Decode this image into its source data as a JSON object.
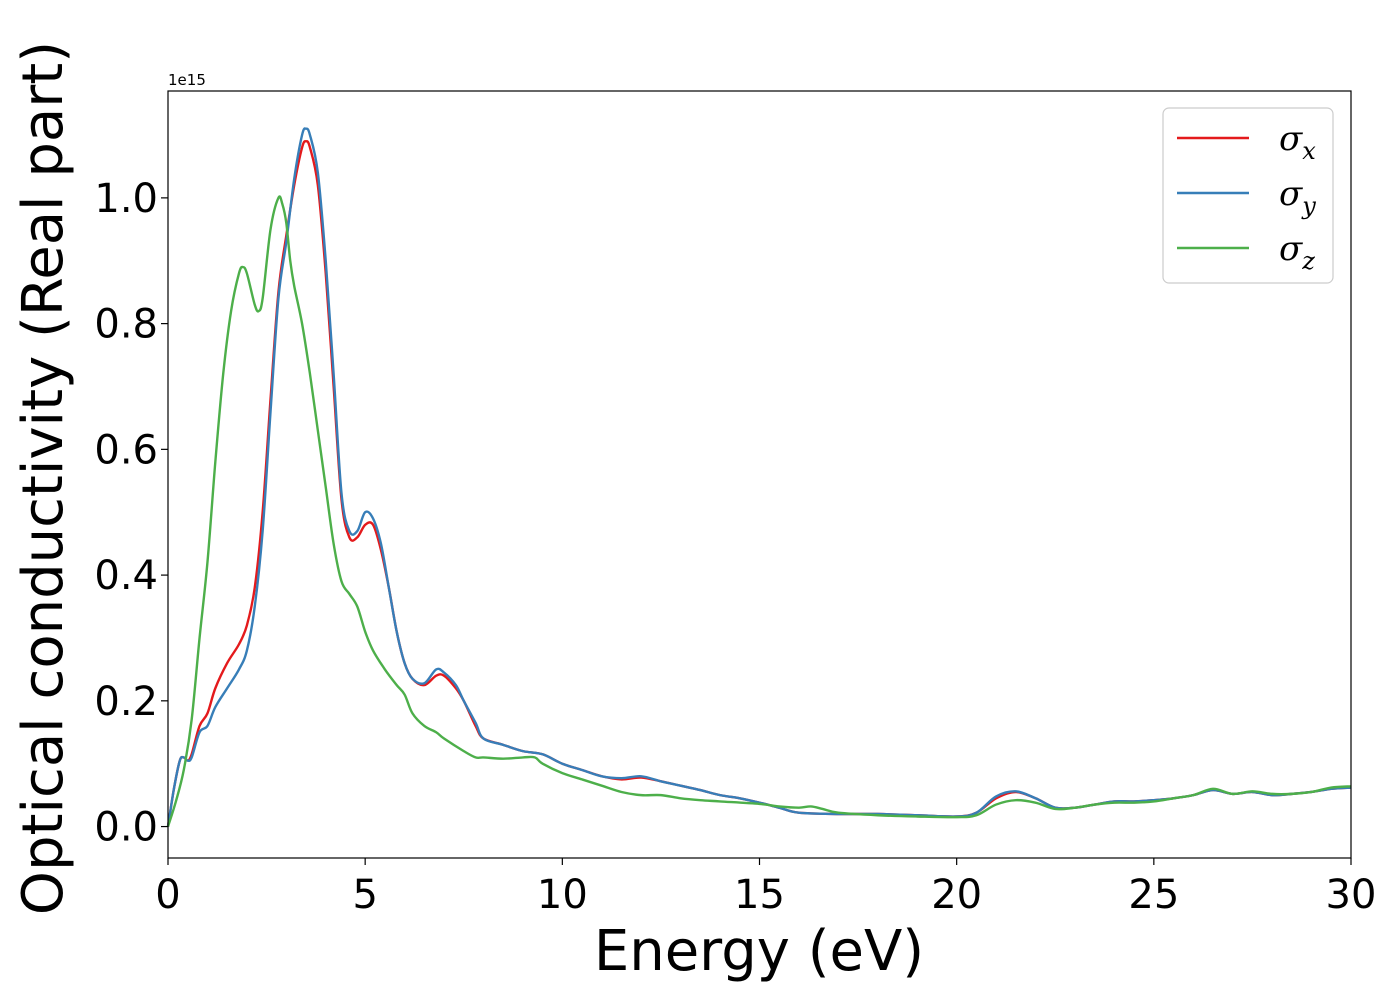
{
  "chart_data": {
    "type": "line",
    "title": "",
    "xlabel": "Energy (eV)",
    "ylabel": "Optical conductivity (Real part)",
    "y_offset_label": "1e15",
    "xlim": [
      0,
      30
    ],
    "ylim": [
      -0.05,
      1.17
    ],
    "x_ticks": [
      0,
      5,
      10,
      15,
      20,
      25,
      30
    ],
    "x_tick_labels": [
      "0",
      "5",
      "10",
      "15",
      "20",
      "25",
      "30"
    ],
    "y_ticks": [
      0.0,
      0.2,
      0.4,
      0.6,
      0.8,
      1.0
    ],
    "y_tick_labels": [
      "0.0",
      "0.2",
      "0.4",
      "0.6",
      "0.8",
      "1.0"
    ],
    "grid": false,
    "legend_position": "top-right",
    "series": [
      {
        "name": "σx",
        "legend_symbol": "σ",
        "legend_subscript": "x",
        "color": "#e41a1c",
        "points": [
          [
            0,
            0.0
          ],
          [
            0.15,
            0.06
          ],
          [
            0.3,
            0.105
          ],
          [
            0.4,
            0.11
          ],
          [
            0.5,
            0.105
          ],
          [
            0.6,
            0.115
          ],
          [
            0.8,
            0.16
          ],
          [
            1.0,
            0.18
          ],
          [
            1.2,
            0.22
          ],
          [
            1.5,
            0.26
          ],
          [
            1.8,
            0.29
          ],
          [
            2.0,
            0.32
          ],
          [
            2.2,
            0.38
          ],
          [
            2.4,
            0.5
          ],
          [
            2.6,
            0.68
          ],
          [
            2.8,
            0.85
          ],
          [
            3.0,
            0.94
          ],
          [
            3.2,
            1.02
          ],
          [
            3.4,
            1.08
          ],
          [
            3.5,
            1.09
          ],
          [
            3.6,
            1.08
          ],
          [
            3.8,
            1.02
          ],
          [
            4.0,
            0.88
          ],
          [
            4.2,
            0.7
          ],
          [
            4.4,
            0.52
          ],
          [
            4.6,
            0.46
          ],
          [
            4.8,
            0.46
          ],
          [
            5.0,
            0.48
          ],
          [
            5.2,
            0.48
          ],
          [
            5.4,
            0.44
          ],
          [
            5.6,
            0.38
          ],
          [
            5.8,
            0.31
          ],
          [
            6.0,
            0.26
          ],
          [
            6.2,
            0.235
          ],
          [
            6.5,
            0.225
          ],
          [
            6.8,
            0.24
          ],
          [
            7.0,
            0.24
          ],
          [
            7.3,
            0.22
          ],
          [
            7.5,
            0.2
          ],
          [
            7.8,
            0.16
          ],
          [
            8.0,
            0.14
          ],
          [
            8.5,
            0.13
          ],
          [
            9.0,
            0.12
          ],
          [
            9.5,
            0.115
          ],
          [
            10.0,
            0.1
          ],
          [
            10.5,
            0.09
          ],
          [
            11.0,
            0.08
          ],
          [
            11.5,
            0.075
          ],
          [
            12.0,
            0.078
          ],
          [
            12.5,
            0.072
          ],
          [
            13.0,
            0.065
          ],
          [
            13.5,
            0.058
          ],
          [
            14.0,
            0.05
          ],
          [
            14.5,
            0.045
          ],
          [
            15.0,
            0.038
          ],
          [
            15.5,
            0.03
          ],
          [
            16.0,
            0.022
          ],
          [
            17.0,
            0.02
          ],
          [
            18.0,
            0.02
          ],
          [
            19.0,
            0.018
          ],
          [
            20.0,
            0.016
          ],
          [
            20.5,
            0.022
          ],
          [
            21.0,
            0.045
          ],
          [
            21.5,
            0.055
          ],
          [
            22.0,
            0.045
          ],
          [
            22.5,
            0.03
          ],
          [
            23.0,
            0.03
          ],
          [
            23.5,
            0.035
          ],
          [
            24.0,
            0.04
          ],
          [
            24.5,
            0.04
          ],
          [
            25.0,
            0.042
          ],
          [
            25.5,
            0.045
          ],
          [
            26.0,
            0.05
          ],
          [
            26.5,
            0.058
          ],
          [
            27.0,
            0.052
          ],
          [
            27.5,
            0.055
          ],
          [
            28.0,
            0.05
          ],
          [
            28.5,
            0.052
          ],
          [
            29.0,
            0.055
          ],
          [
            29.5,
            0.06
          ],
          [
            30.0,
            0.062
          ]
        ]
      },
      {
        "name": "σy",
        "legend_symbol": "σ",
        "legend_subscript": "y",
        "color": "#377eb8",
        "points": [
          [
            0,
            0.0
          ],
          [
            0.15,
            0.06
          ],
          [
            0.3,
            0.105
          ],
          [
            0.4,
            0.11
          ],
          [
            0.5,
            0.105
          ],
          [
            0.6,
            0.11
          ],
          [
            0.8,
            0.15
          ],
          [
            1.0,
            0.16
          ],
          [
            1.2,
            0.19
          ],
          [
            1.5,
            0.22
          ],
          [
            1.8,
            0.25
          ],
          [
            2.0,
            0.28
          ],
          [
            2.2,
            0.35
          ],
          [
            2.4,
            0.47
          ],
          [
            2.6,
            0.66
          ],
          [
            2.8,
            0.84
          ],
          [
            3.0,
            0.93
          ],
          [
            3.2,
            1.03
          ],
          [
            3.4,
            1.1
          ],
          [
            3.5,
            1.11
          ],
          [
            3.6,
            1.1
          ],
          [
            3.8,
            1.04
          ],
          [
            4.0,
            0.9
          ],
          [
            4.2,
            0.72
          ],
          [
            4.4,
            0.53
          ],
          [
            4.6,
            0.47
          ],
          [
            4.8,
            0.47
          ],
          [
            5.0,
            0.5
          ],
          [
            5.2,
            0.49
          ],
          [
            5.4,
            0.45
          ],
          [
            5.6,
            0.38
          ],
          [
            5.8,
            0.31
          ],
          [
            6.0,
            0.26
          ],
          [
            6.2,
            0.235
          ],
          [
            6.5,
            0.228
          ],
          [
            6.8,
            0.25
          ],
          [
            7.0,
            0.245
          ],
          [
            7.3,
            0.225
          ],
          [
            7.5,
            0.2
          ],
          [
            7.8,
            0.165
          ],
          [
            8.0,
            0.14
          ],
          [
            8.5,
            0.13
          ],
          [
            9.0,
            0.12
          ],
          [
            9.5,
            0.115
          ],
          [
            10.0,
            0.1
          ],
          [
            10.5,
            0.09
          ],
          [
            11.0,
            0.08
          ],
          [
            11.5,
            0.077
          ],
          [
            12.0,
            0.08
          ],
          [
            12.5,
            0.072
          ],
          [
            13.0,
            0.065
          ],
          [
            13.5,
            0.058
          ],
          [
            14.0,
            0.05
          ],
          [
            14.5,
            0.045
          ],
          [
            15.0,
            0.038
          ],
          [
            15.5,
            0.03
          ],
          [
            16.0,
            0.022
          ],
          [
            17.0,
            0.02
          ],
          [
            18.0,
            0.02
          ],
          [
            19.0,
            0.018
          ],
          [
            20.0,
            0.016
          ],
          [
            20.5,
            0.022
          ],
          [
            21.0,
            0.048
          ],
          [
            21.5,
            0.056
          ],
          [
            22.0,
            0.045
          ],
          [
            22.5,
            0.03
          ],
          [
            23.0,
            0.03
          ],
          [
            23.5,
            0.035
          ],
          [
            24.0,
            0.04
          ],
          [
            24.5,
            0.04
          ],
          [
            25.0,
            0.042
          ],
          [
            25.5,
            0.045
          ],
          [
            26.0,
            0.05
          ],
          [
            26.5,
            0.058
          ],
          [
            27.0,
            0.052
          ],
          [
            27.5,
            0.055
          ],
          [
            28.0,
            0.05
          ],
          [
            28.5,
            0.052
          ],
          [
            29.0,
            0.055
          ],
          [
            29.5,
            0.06
          ],
          [
            30.0,
            0.062
          ]
        ]
      },
      {
        "name": "σz",
        "legend_symbol": "σ",
        "legend_subscript": "z",
        "color": "#4daf4a",
        "points": [
          [
            0,
            0.0
          ],
          [
            0.2,
            0.04
          ],
          [
            0.4,
            0.09
          ],
          [
            0.6,
            0.17
          ],
          [
            0.8,
            0.3
          ],
          [
            1.0,
            0.42
          ],
          [
            1.2,
            0.58
          ],
          [
            1.4,
            0.72
          ],
          [
            1.6,
            0.82
          ],
          [
            1.8,
            0.88
          ],
          [
            1.9,
            0.89
          ],
          [
            2.0,
            0.88
          ],
          [
            2.2,
            0.83
          ],
          [
            2.3,
            0.82
          ],
          [
            2.4,
            0.84
          ],
          [
            2.6,
            0.95
          ],
          [
            2.8,
            1.0
          ],
          [
            2.9,
            0.99
          ],
          [
            3.0,
            0.96
          ],
          [
            3.1,
            0.9
          ],
          [
            3.2,
            0.86
          ],
          [
            3.4,
            0.8
          ],
          [
            3.6,
            0.72
          ],
          [
            3.8,
            0.63
          ],
          [
            4.0,
            0.54
          ],
          [
            4.2,
            0.45
          ],
          [
            4.4,
            0.39
          ],
          [
            4.6,
            0.37
          ],
          [
            4.8,
            0.35
          ],
          [
            5.0,
            0.31
          ],
          [
            5.2,
            0.28
          ],
          [
            5.5,
            0.25
          ],
          [
            5.8,
            0.225
          ],
          [
            6.0,
            0.21
          ],
          [
            6.2,
            0.18
          ],
          [
            6.5,
            0.16
          ],
          [
            6.8,
            0.15
          ],
          [
            7.0,
            0.14
          ],
          [
            7.5,
            0.12
          ],
          [
            7.8,
            0.11
          ],
          [
            8.0,
            0.11
          ],
          [
            8.5,
            0.108
          ],
          [
            9.0,
            0.11
          ],
          [
            9.3,
            0.11
          ],
          [
            9.5,
            0.1
          ],
          [
            10.0,
            0.085
          ],
          [
            10.5,
            0.075
          ],
          [
            11.0,
            0.065
          ],
          [
            11.5,
            0.055
          ],
          [
            12.0,
            0.05
          ],
          [
            12.5,
            0.05
          ],
          [
            13.0,
            0.045
          ],
          [
            13.5,
            0.042
          ],
          [
            14.0,
            0.04
          ],
          [
            15.0,
            0.036
          ],
          [
            15.5,
            0.032
          ],
          [
            16.0,
            0.03
          ],
          [
            16.3,
            0.032
          ],
          [
            16.6,
            0.028
          ],
          [
            17.0,
            0.022
          ],
          [
            18.0,
            0.018
          ],
          [
            19.0,
            0.016
          ],
          [
            20.0,
            0.015
          ],
          [
            20.5,
            0.018
          ],
          [
            21.0,
            0.035
          ],
          [
            21.5,
            0.042
          ],
          [
            22.0,
            0.038
          ],
          [
            22.5,
            0.028
          ],
          [
            23.0,
            0.03
          ],
          [
            23.5,
            0.035
          ],
          [
            24.0,
            0.038
          ],
          [
            24.5,
            0.038
          ],
          [
            25.0,
            0.04
          ],
          [
            25.5,
            0.045
          ],
          [
            26.0,
            0.05
          ],
          [
            26.5,
            0.06
          ],
          [
            27.0,
            0.052
          ],
          [
            27.5,
            0.056
          ],
          [
            28.0,
            0.052
          ],
          [
            28.5,
            0.052
          ],
          [
            29.0,
            0.055
          ],
          [
            29.5,
            0.062
          ],
          [
            30.0,
            0.064
          ]
        ]
      }
    ]
  }
}
